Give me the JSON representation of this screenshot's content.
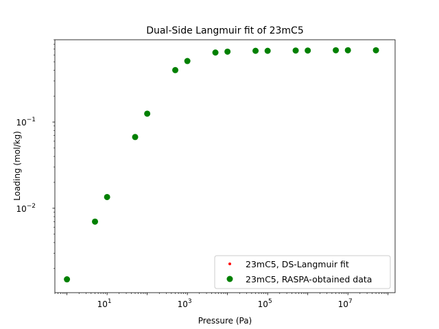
{
  "chart_data": {
    "type": "scatter",
    "title": "Dual-Side Langmuir fit of 23mC5",
    "xlabel": "Pressure (Pa)",
    "ylabel": "Loading (mol/kg)",
    "xscale": "log",
    "yscale": "log",
    "xlim": [
      0.5,
      150000000
    ],
    "ylim": [
      0.00105,
      0.9
    ],
    "grid": false,
    "legend_position": "lower-right",
    "x_ticks": [
      {
        "value": 10,
        "base": "10",
        "exp": "1"
      },
      {
        "value": 1000,
        "base": "10",
        "exp": "3"
      },
      {
        "value": 100000,
        "base": "10",
        "exp": "5"
      },
      {
        "value": 10000000,
        "base": "10",
        "exp": "7"
      }
    ],
    "y_ticks": [
      {
        "value": 0.01,
        "base": "10",
        "exp": "−2"
      },
      {
        "value": 0.1,
        "base": "10",
        "exp": "−1"
      }
    ],
    "series": [
      {
        "name": "23mC5, DS-Langmuir fit",
        "color": "#ff0000",
        "marker": "small-dot",
        "x": [],
        "y": []
      },
      {
        "name": "23mC5, RASPA-obtained data",
        "color": "#008000",
        "marker": "circle",
        "x": [
          1,
          5,
          10,
          50,
          100,
          500,
          1000,
          5000,
          10000,
          50000,
          100000,
          500000,
          1000000,
          5000000,
          10000000,
          50000000
        ],
        "y": [
          0.0015,
          0.007,
          0.0135,
          0.067,
          0.125,
          0.4,
          0.51,
          0.64,
          0.655,
          0.67,
          0.67,
          0.675,
          0.675,
          0.68,
          0.68,
          0.68
        ]
      }
    ]
  }
}
